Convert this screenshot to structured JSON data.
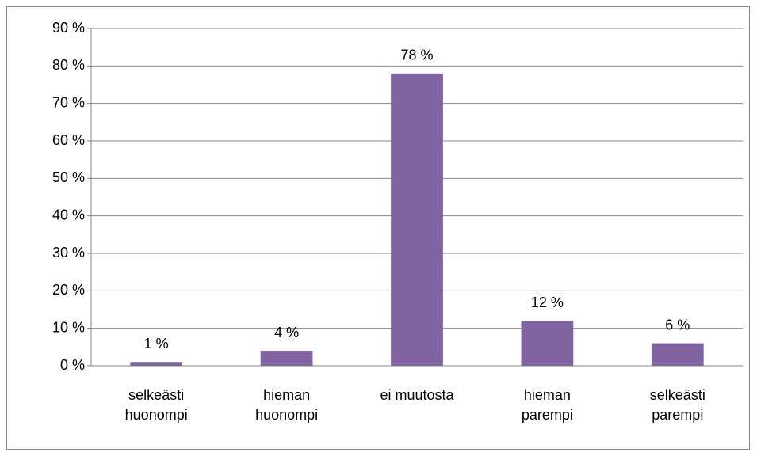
{
  "chart_data": {
    "type": "bar",
    "categories": [
      "selkeästi\nhuonompi",
      "hieman\nhuonompi",
      "ei muutosta",
      "hieman\nparempi",
      "selkeästi\nparempi"
    ],
    "values": [
      1,
      4,
      78,
      12,
      6
    ],
    "value_labels": [
      "1 %",
      "4 %",
      "78 %",
      "12 %",
      "6 %"
    ],
    "color": "#8064a2",
    "ylim": [
      0,
      90
    ],
    "yticks": [
      {
        "value": 0,
        "label": "0 %"
      },
      {
        "value": 10,
        "label": "10 %"
      },
      {
        "value": 20,
        "label": "20 %"
      },
      {
        "value": 30,
        "label": "30 %"
      },
      {
        "value": 40,
        "label": "40 %"
      },
      {
        "value": 50,
        "label": "50 %"
      },
      {
        "value": 60,
        "label": "60 %"
      },
      {
        "value": 70,
        "label": "70 %"
      },
      {
        "value": 80,
        "label": "80 %"
      },
      {
        "value": 90,
        "label": "90 %"
      }
    ],
    "grid": true
  }
}
